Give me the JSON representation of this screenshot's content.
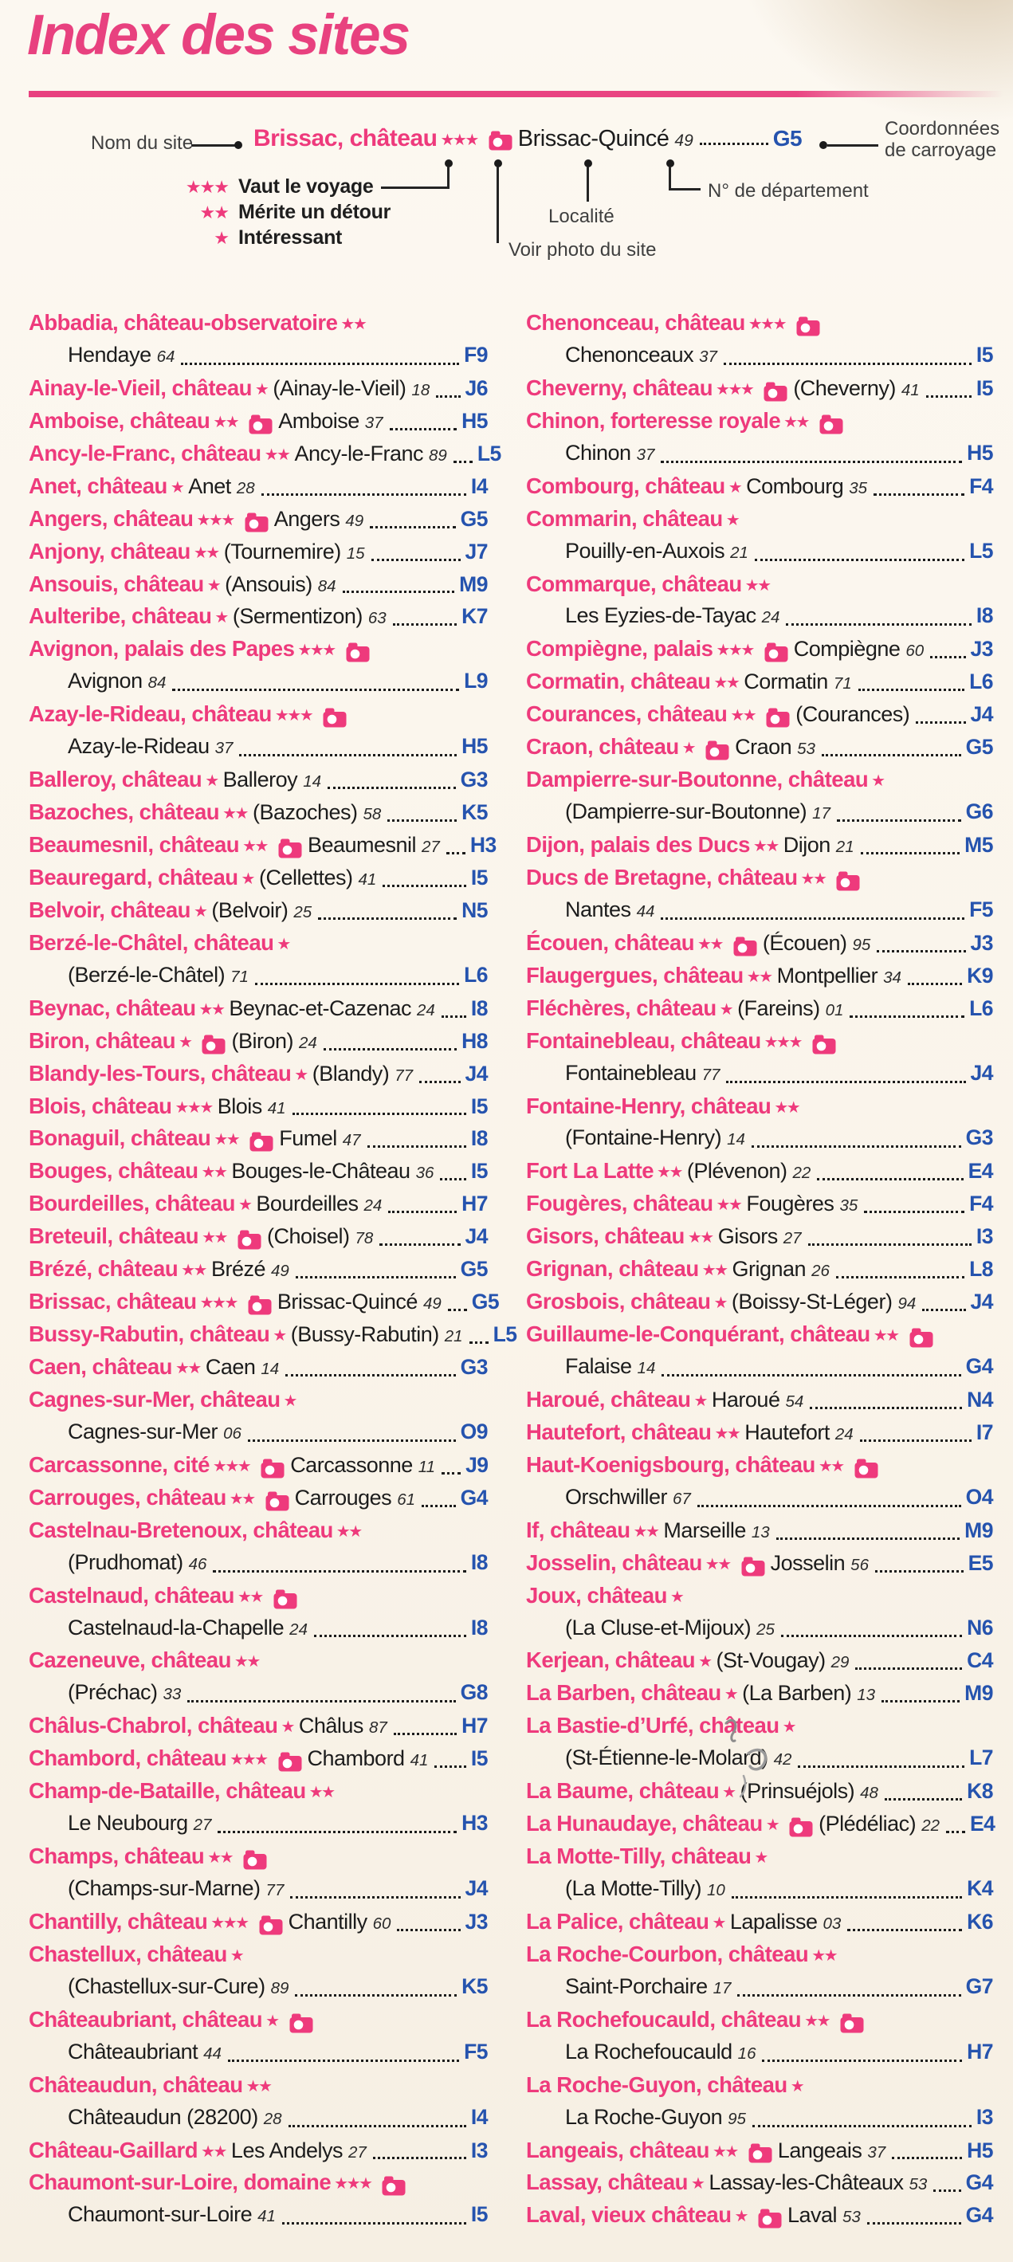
{
  "page": {
    "title": "Index des sites"
  },
  "colors": {
    "accent_pink": "#ee3a7c",
    "coord_blue": "#2553ae"
  },
  "legend": {
    "nom_du_site": "Nom du site",
    "coordonnees_line1": "Coordonnées",
    "coordonnees_line2": "de carroyage",
    "localite_label": "Localité",
    "photo_label": "Voir photo du site",
    "departement_label": "N° de département",
    "example": {
      "name": "Brissac, château",
      "stars": 3,
      "photo": true,
      "locality": "Brissac-Quincé",
      "dept": "49",
      "coord": "G5"
    },
    "ratings": [
      {
        "stars": 3,
        "label": "Vaut le voyage"
      },
      {
        "stars": 2,
        "label": "Mérite un détour"
      },
      {
        "stars": 1,
        "label": "Intéressant"
      }
    ]
  },
  "index": {
    "left": [
      {
        "name": "Abbadia, château-observatoire",
        "stars": 2,
        "photo": false,
        "locality": "Hendaye",
        "dept": "64",
        "coord": "F9",
        "wrap": true
      },
      {
        "name": "Ainay-le-Vieil, château",
        "stars": 1,
        "photo": false,
        "locality": "(Ainay-le-Vieil)",
        "dept": "18",
        "coord": "J6",
        "wrap": false
      },
      {
        "name": "Amboise, château",
        "stars": 2,
        "photo": true,
        "locality": "Amboise",
        "dept": "37",
        "coord": "H5",
        "wrap": false
      },
      {
        "name": "Ancy-le-Franc, château",
        "stars": 2,
        "photo": false,
        "locality": "Ancy-le-Franc",
        "dept": "89",
        "coord": "L5",
        "wrap": false
      },
      {
        "name": "Anet, château",
        "stars": 1,
        "photo": false,
        "locality": "Anet",
        "dept": "28",
        "coord": "I4",
        "wrap": false
      },
      {
        "name": "Angers, château",
        "stars": 3,
        "photo": true,
        "locality": "Angers",
        "dept": "49",
        "coord": "G5",
        "wrap": false
      },
      {
        "name": "Anjony, château",
        "stars": 2,
        "photo": false,
        "locality": "(Tournemire)",
        "dept": "15",
        "coord": "J7",
        "wrap": false
      },
      {
        "name": "Ansouis, château",
        "stars": 1,
        "photo": false,
        "locality": "(Ansouis)",
        "dept": "84",
        "coord": "M9",
        "wrap": false
      },
      {
        "name": "Aulteribe, château",
        "stars": 1,
        "photo": false,
        "locality": "(Sermentizon)",
        "dept": "63",
        "coord": "K7",
        "wrap": false
      },
      {
        "name": "Avignon, palais des Papes",
        "stars": 3,
        "photo": true,
        "locality": "Avignon",
        "dept": "84",
        "coord": "L9",
        "wrap": true
      },
      {
        "name": "Azay-le-Rideau, château",
        "stars": 3,
        "photo": true,
        "locality": "Azay-le-Rideau",
        "dept": "37",
        "coord": "H5",
        "wrap": true
      },
      {
        "name": "Balleroy, château",
        "stars": 1,
        "photo": false,
        "locality": "Balleroy",
        "dept": "14",
        "coord": "G3",
        "wrap": false
      },
      {
        "name": "Bazoches, château",
        "stars": 2,
        "photo": false,
        "locality": "(Bazoches)",
        "dept": "58",
        "coord": "K5",
        "wrap": false
      },
      {
        "name": "Beaumesnil, château",
        "stars": 2,
        "photo": true,
        "locality": "Beaumesnil",
        "dept": "27",
        "coord": "H3",
        "wrap": false
      },
      {
        "name": "Beauregard, château",
        "stars": 1,
        "photo": false,
        "locality": "(Cellettes)",
        "dept": "41",
        "coord": "I5",
        "wrap": false
      },
      {
        "name": "Belvoir, château",
        "stars": 1,
        "photo": false,
        "locality": "(Belvoir)",
        "dept": "25",
        "coord": "N5",
        "wrap": false
      },
      {
        "name": "Berzé-le-Châtel, château",
        "stars": 1,
        "photo": false,
        "locality": "(Berzé-le-Châtel)",
        "dept": "71",
        "coord": "L6",
        "wrap": true
      },
      {
        "name": "Beynac, château",
        "stars": 2,
        "photo": false,
        "locality": "Beynac-et-Cazenac",
        "dept": "24",
        "coord": "I8",
        "wrap": false
      },
      {
        "name": "Biron, château",
        "stars": 1,
        "photo": true,
        "locality": "(Biron)",
        "dept": "24",
        "coord": "H8",
        "wrap": false
      },
      {
        "name": "Blandy-les-Tours, château",
        "stars": 1,
        "photo": false,
        "locality": "(Blandy)",
        "dept": "77",
        "coord": "J4",
        "wrap": false
      },
      {
        "name": "Blois, château",
        "stars": 3,
        "photo": false,
        "locality": "Blois",
        "dept": "41",
        "coord": "I5",
        "wrap": false
      },
      {
        "name": "Bonaguil, château",
        "stars": 2,
        "photo": true,
        "locality": "Fumel",
        "dept": "47",
        "coord": "I8",
        "wrap": false
      },
      {
        "name": "Bouges, château",
        "stars": 2,
        "photo": false,
        "locality": "Bouges-le-Château",
        "dept": "36",
        "coord": "I5",
        "wrap": false
      },
      {
        "name": "Bourdeilles, château",
        "stars": 1,
        "photo": false,
        "locality": "Bourdeilles",
        "dept": "24",
        "coord": "H7",
        "wrap": false
      },
      {
        "name": "Breteuil, château",
        "stars": 2,
        "photo": true,
        "locality": "(Choisel)",
        "dept": "78",
        "coord": "J4",
        "wrap": false
      },
      {
        "name": "Brézé, château",
        "stars": 2,
        "photo": false,
        "locality": "Brézé",
        "dept": "49",
        "coord": "G5",
        "wrap": false
      },
      {
        "name": "Brissac, château",
        "stars": 3,
        "photo": true,
        "locality": "Brissac-Quincé",
        "dept": "49",
        "coord": "G5",
        "wrap": false
      },
      {
        "name": "Bussy-Rabutin, château",
        "stars": 1,
        "photo": false,
        "locality": "(Bussy-Rabutin)",
        "dept": "21",
        "coord": "L5",
        "wrap": false
      },
      {
        "name": "Caen, château",
        "stars": 2,
        "photo": false,
        "locality": "Caen",
        "dept": "14",
        "coord": "G3",
        "wrap": false
      },
      {
        "name": "Cagnes-sur-Mer, château",
        "stars": 1,
        "photo": false,
        "locality": "Cagnes-sur-Mer",
        "dept": "06",
        "coord": "O9",
        "wrap": true
      },
      {
        "name": "Carcassonne, cité",
        "stars": 3,
        "photo": true,
        "locality": "Carcassonne",
        "dept": "11",
        "coord": "J9",
        "wrap": false
      },
      {
        "name": "Carrouges, château",
        "stars": 2,
        "photo": true,
        "locality": "Carrouges",
        "dept": "61",
        "coord": "G4",
        "wrap": false
      },
      {
        "name": "Castelnau-Bretenoux, château",
        "stars": 2,
        "photo": false,
        "locality": "(Prudhomat)",
        "dept": "46",
        "coord": "I8",
        "wrap": true
      },
      {
        "name": "Castelnaud, château",
        "stars": 2,
        "photo": true,
        "locality": "Castelnaud-la-Chapelle",
        "dept": "24",
        "coord": "I8",
        "wrap": true
      },
      {
        "name": "Cazeneuve, château",
        "stars": 2,
        "photo": false,
        "locality": "(Préchac)",
        "dept": "33",
        "coord": "G8",
        "wrap": true
      },
      {
        "name": "Châlus-Chabrol, château",
        "stars": 1,
        "photo": false,
        "locality": "Châlus",
        "dept": "87",
        "coord": "H7",
        "wrap": false
      },
      {
        "name": "Chambord, château",
        "stars": 3,
        "photo": true,
        "locality": "Chambord",
        "dept": "41",
        "coord": "I5",
        "wrap": false
      },
      {
        "name": "Champ-de-Bataille, château",
        "stars": 2,
        "photo": false,
        "locality": "Le Neubourg",
        "dept": "27",
        "coord": "H3",
        "wrap": true
      },
      {
        "name": "Champs, château",
        "stars": 2,
        "photo": true,
        "locality": "(Champs-sur-Marne)",
        "dept": "77",
        "coord": "J4",
        "wrap": true
      },
      {
        "name": "Chantilly, château",
        "stars": 3,
        "photo": true,
        "locality": "Chantilly",
        "dept": "60",
        "coord": "J3",
        "wrap": false
      },
      {
        "name": "Chastellux, château",
        "stars": 1,
        "photo": false,
        "locality": "(Chastellux-sur-Cure)",
        "dept": "89",
        "coord": "K5",
        "wrap": true
      },
      {
        "name": "Châteaubriant, château",
        "stars": 1,
        "photo": true,
        "locality": "Châteaubriant",
        "dept": "44",
        "coord": "F5",
        "wrap": true
      },
      {
        "name": "Châteaudun, château",
        "stars": 2,
        "photo": false,
        "locality": "Châteaudun (28200)",
        "dept": "28",
        "coord": "I4",
        "wrap": true
      },
      {
        "name": "Château-Gaillard",
        "stars": 2,
        "photo": false,
        "locality": "Les Andelys",
        "dept": "27",
        "coord": "I3",
        "wrap": false
      },
      {
        "name": "Chaumont-sur-Loire, domaine",
        "stars": 3,
        "photo": true,
        "locality": "Chaumont-sur-Loire",
        "dept": "41",
        "coord": "I5",
        "wrap": true
      }
    ],
    "right": [
      {
        "name": "Chenonceau, château",
        "stars": 3,
        "photo": true,
        "locality": "Chenonceaux",
        "dept": "37",
        "coord": "I5",
        "wrap": true
      },
      {
        "name": "Cheverny, château",
        "stars": 3,
        "photo": true,
        "locality": "(Cheverny)",
        "dept": "41",
        "coord": "I5",
        "wrap": false
      },
      {
        "name": "Chinon, forteresse royale",
        "stars": 2,
        "photo": true,
        "locality": "Chinon",
        "dept": "37",
        "coord": "H5",
        "wrap": true
      },
      {
        "name": "Combourg, château",
        "stars": 1,
        "photo": false,
        "locality": "Combourg",
        "dept": "35",
        "coord": "F4",
        "wrap": false
      },
      {
        "name": "Commarin, château",
        "stars": 1,
        "photo": false,
        "locality": "Pouilly-en-Auxois",
        "dept": "21",
        "coord": "L5",
        "wrap": true
      },
      {
        "name": "Commarque, château",
        "stars": 2,
        "photo": false,
        "locality": "Les Eyzies-de-Tayac",
        "dept": "24",
        "coord": "I8",
        "wrap": true
      },
      {
        "name": "Compiègne, palais",
        "stars": 3,
        "photo": true,
        "locality": "Compiègne",
        "dept": "60",
        "coord": "J3",
        "wrap": false
      },
      {
        "name": "Cormatin, château",
        "stars": 2,
        "photo": false,
        "locality": "Cormatin",
        "dept": "71",
        "coord": "L6",
        "wrap": false
      },
      {
        "name": "Courances, château",
        "stars": 2,
        "photo": true,
        "locality": "(Courances)",
        "dept": "",
        "coord": "J4",
        "wrap": false
      },
      {
        "name": "Craon, château",
        "stars": 1,
        "photo": true,
        "locality": "Craon",
        "dept": "53",
        "coord": "G5",
        "wrap": false
      },
      {
        "name": "Dampierre-sur-Boutonne, château",
        "stars": 1,
        "photo": false,
        "locality": "(Dampierre-sur-Boutonne)",
        "dept": "17",
        "coord": "G6",
        "wrap": true
      },
      {
        "name": "Dijon, palais des Ducs",
        "stars": 2,
        "photo": false,
        "locality": "Dijon",
        "dept": "21",
        "coord": "M5",
        "wrap": false
      },
      {
        "name": "Ducs de Bretagne, château",
        "stars": 2,
        "photo": true,
        "locality": "Nantes",
        "dept": "44",
        "coord": "F5",
        "wrap": true
      },
      {
        "name": "Écouen, château",
        "stars": 2,
        "photo": true,
        "locality": "(Écouen)",
        "dept": "95",
        "coord": "J3",
        "wrap": false
      },
      {
        "name": "Flaugergues, château",
        "stars": 2,
        "photo": false,
        "locality": "Montpellier",
        "dept": "34",
        "coord": "K9",
        "wrap": false
      },
      {
        "name": "Fléchères, château",
        "stars": 1,
        "photo": false,
        "locality": "(Fareins)",
        "dept": "01",
        "coord": "L6",
        "wrap": false
      },
      {
        "name": "Fontainebleau, château",
        "stars": 3,
        "photo": true,
        "locality": "Fontainebleau",
        "dept": "77",
        "coord": "J4",
        "wrap": true
      },
      {
        "name": "Fontaine-Henry, château",
        "stars": 2,
        "photo": false,
        "locality": "(Fontaine-Henry)",
        "dept": "14",
        "coord": "G3",
        "wrap": true
      },
      {
        "name": "Fort La Latte",
        "stars": 2,
        "photo": false,
        "locality": "(Plévenon)",
        "dept": "22",
        "coord": "E4",
        "wrap": false
      },
      {
        "name": "Fougères, château",
        "stars": 2,
        "photo": false,
        "locality": "Fougères",
        "dept": "35",
        "coord": "F4",
        "wrap": false
      },
      {
        "name": "Gisors, château",
        "stars": 2,
        "photo": false,
        "locality": "Gisors",
        "dept": "27",
        "coord": "I3",
        "wrap": false
      },
      {
        "name": "Grignan, château",
        "stars": 2,
        "photo": false,
        "locality": "Grignan",
        "dept": "26",
        "coord": "L8",
        "wrap": false
      },
      {
        "name": "Grosbois, château",
        "stars": 1,
        "photo": false,
        "locality": "(Boissy-St-Léger)",
        "dept": "94",
        "coord": "J4",
        "wrap": false
      },
      {
        "name": "Guillaume-le-Conquérant, château",
        "stars": 2,
        "photo": true,
        "locality": "Falaise",
        "dept": "14",
        "coord": "G4",
        "wrap": true
      },
      {
        "name": "Haroué, château",
        "stars": 1,
        "photo": false,
        "locality": "Haroué",
        "dept": "54",
        "coord": "N4",
        "wrap": false
      },
      {
        "name": "Hautefort, château",
        "stars": 2,
        "photo": false,
        "locality": "Hautefort",
        "dept": "24",
        "coord": "I7",
        "wrap": false
      },
      {
        "name": "Haut-Koenigsbourg, château",
        "stars": 2,
        "photo": true,
        "locality": "Orschwiller",
        "dept": "67",
        "coord": "O4",
        "wrap": true
      },
      {
        "name": "If, château",
        "stars": 2,
        "photo": false,
        "locality": "Marseille",
        "dept": "13",
        "coord": "M9",
        "wrap": false
      },
      {
        "name": "Josselin, château",
        "stars": 2,
        "photo": true,
        "locality": "Josselin",
        "dept": "56",
        "coord": "E5",
        "wrap": false
      },
      {
        "name": "Joux, château",
        "stars": 1,
        "photo": false,
        "locality": "(La Cluse-et-Mijoux)",
        "dept": "25",
        "coord": "N6",
        "wrap": true
      },
      {
        "name": "Kerjean, château",
        "stars": 1,
        "photo": false,
        "locality": "(St-Vougay)",
        "dept": "29",
        "coord": "C4",
        "wrap": false
      },
      {
        "name": "La Barben, château",
        "stars": 1,
        "photo": false,
        "locality": "(La Barben)",
        "dept": "13",
        "coord": "M9",
        "wrap": false
      },
      {
        "name": "La Bastie-d’Urfé, château",
        "stars": 1,
        "photo": false,
        "locality": "(St-Étienne-le-Molard)",
        "dept": "42",
        "coord": "L7",
        "wrap": true
      },
      {
        "name": "La Baume, château",
        "stars": 1,
        "photo": false,
        "locality": "(Prinsuéjols)",
        "dept": "48",
        "coord": "K8",
        "wrap": false
      },
      {
        "name": "La Hunaudaye, château",
        "stars": 1,
        "photo": true,
        "locality": "(Plédéliac)",
        "dept": "22",
        "coord": "E4",
        "wrap": false
      },
      {
        "name": "La Motte-Tilly, château",
        "stars": 1,
        "photo": false,
        "locality": "(La Motte-Tilly)",
        "dept": "10",
        "coord": "K4",
        "wrap": true
      },
      {
        "name": "La Palice, château",
        "stars": 1,
        "photo": false,
        "locality": "Lapalisse",
        "dept": "03",
        "coord": "K6",
        "wrap": false
      },
      {
        "name": "La Roche-Courbon, château",
        "stars": 2,
        "photo": false,
        "locality": "Saint-Porchaire",
        "dept": "17",
        "coord": "G7",
        "wrap": true
      },
      {
        "name": "La Rochefoucauld, château",
        "stars": 2,
        "photo": true,
        "locality": "La Rochefoucauld",
        "dept": "16",
        "coord": "H7",
        "wrap": true
      },
      {
        "name": "La Roche-Guyon, château",
        "stars": 1,
        "photo": false,
        "locality": "La Roche-Guyon",
        "dept": "95",
        "coord": "I3",
        "wrap": true
      },
      {
        "name": "Langeais, château",
        "stars": 2,
        "photo": true,
        "locality": "Langeais",
        "dept": "37",
        "coord": "H5",
        "wrap": false
      },
      {
        "name": "Lassay, château",
        "stars": 1,
        "photo": false,
        "locality": "Lassay-les-Châteaux",
        "dept": "53",
        "coord": "G4",
        "wrap": false
      },
      {
        "name": "Laval, vieux château",
        "stars": 1,
        "photo": true,
        "locality": "Laval",
        "dept": "53",
        "coord": "G4",
        "wrap": false
      }
    ]
  }
}
